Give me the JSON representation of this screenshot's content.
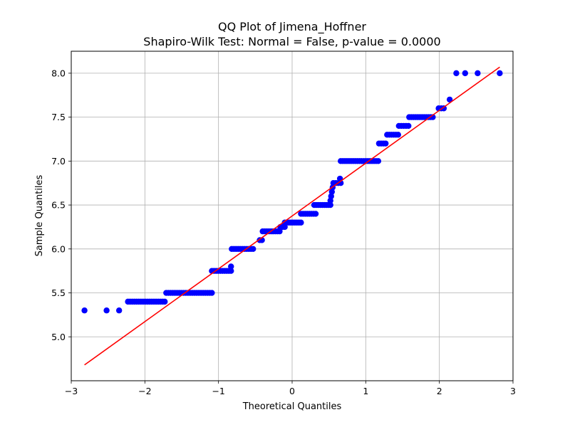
{
  "chart_data": {
    "type": "scatter",
    "title": "QQ Plot of Jimena_Hoffner",
    "subtitle": "Shapiro-Wilk Test: Normal = False, p-value = 0.0000",
    "xlabel": "Theoretical Quantiles",
    "ylabel": "Sample Quantiles",
    "xlim": [
      -3.0,
      3.0
    ],
    "ylim": [
      4.5,
      8.25
    ],
    "xticks": [
      -3,
      -2,
      -1,
      0,
      1,
      2,
      3
    ],
    "xtick_labels": [
      "−3",
      "−2",
      "−1",
      "0",
      "1",
      "2",
      "3"
    ],
    "yticks": [
      5.0,
      5.5,
      6.0,
      6.5,
      7.0,
      7.5,
      8.0
    ],
    "ytick_labels": [
      "5.0",
      "5.5",
      "6.0",
      "6.5",
      "7.0",
      "7.5",
      "8.0"
    ],
    "grid": true,
    "point_color": "#0000ff",
    "line_color": "#ff0000",
    "series": [
      {
        "runs": [
          [
            -2.82,
            -2.82,
            5.3
          ],
          [
            -2.52,
            -2.52,
            5.3
          ],
          [
            -2.35,
            -2.35,
            5.3
          ],
          [
            -2.23,
            -1.73,
            5.4
          ],
          [
            -1.71,
            -1.09,
            5.5
          ],
          [
            -1.09,
            -0.83,
            5.75
          ],
          [
            -0.83,
            -0.83,
            5.8
          ],
          [
            -0.82,
            -0.53,
            6.0
          ],
          [
            -0.44,
            -0.41,
            6.1
          ],
          [
            -0.4,
            -0.17,
            6.2
          ],
          [
            -0.16,
            -0.1,
            6.25
          ],
          [
            -0.1,
            0.12,
            6.3
          ],
          [
            0.12,
            0.32,
            6.4
          ],
          [
            0.3,
            0.52,
            6.5
          ],
          [
            0.52,
            0.53,
            6.55
          ],
          [
            0.53,
            0.54,
            6.6
          ],
          [
            0.54,
            0.55,
            6.65
          ],
          [
            0.55,
            0.56,
            6.7
          ],
          [
            0.56,
            0.66,
            6.75
          ],
          [
            0.65,
            0.65,
            6.8
          ],
          [
            0.66,
            1.17,
            7.0
          ],
          [
            1.18,
            1.27,
            7.2
          ],
          [
            1.29,
            1.44,
            7.3
          ],
          [
            1.45,
            1.58,
            7.4
          ],
          [
            1.59,
            1.91,
            7.5
          ],
          [
            1.99,
            2.06,
            7.6
          ],
          [
            2.14,
            2.14,
            7.7
          ]
        ],
        "points": [
          [
            2.23,
            8.0
          ],
          [
            2.35,
            8.0
          ],
          [
            2.52,
            8.0
          ],
          [
            2.82,
            8.0
          ]
        ]
      }
    ],
    "fit_line": {
      "x": [
        -2.82,
        2.82
      ],
      "y": [
        4.68,
        8.07
      ]
    }
  }
}
